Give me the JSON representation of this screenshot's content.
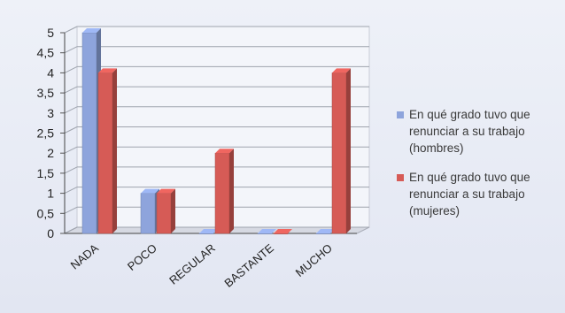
{
  "chart_data": {
    "type": "bar",
    "categories": [
      "NADA",
      "POCO",
      "REGULAR",
      "BASTANTE",
      "MUCHO"
    ],
    "series": [
      {
        "name": "En qué grado tuvo que renunciar a su trabajo (hombres)",
        "values": [
          5,
          1,
          0,
          0,
          0
        ],
        "color": "#8ea4dc"
      },
      {
        "name": "En qué grado tuvo que renunciar a su trabajo (mujeres)",
        "values": [
          4,
          1,
          2,
          0,
          4
        ],
        "color": "#d65b56"
      }
    ],
    "ylim": [
      0,
      5
    ],
    "yticks": [
      "0",
      "0,5",
      "1",
      "1,5",
      "2",
      "2,5",
      "3",
      "3,5",
      "4",
      "4,5",
      "5"
    ],
    "ystep": 0.5,
    "grid": true,
    "legend_position": "right",
    "title": "",
    "xlabel": "",
    "ylabel": ""
  }
}
